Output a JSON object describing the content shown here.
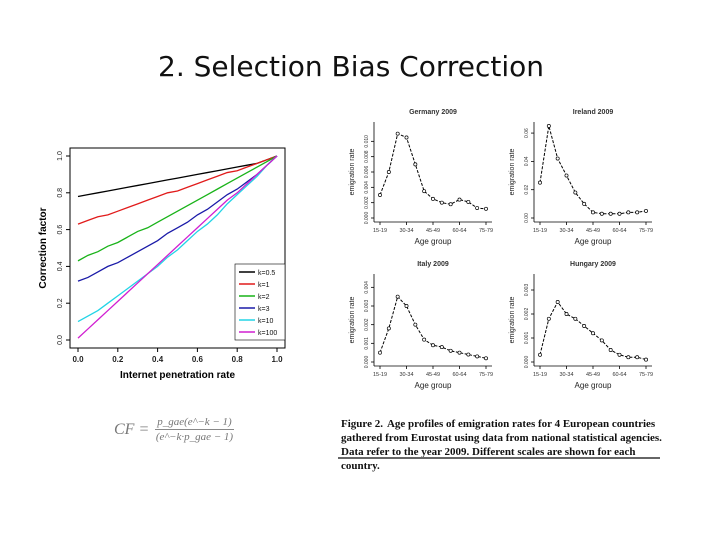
{
  "slide": {
    "title": "2. Selection Bias Correction"
  },
  "formula": {
    "lhs": "CF =",
    "numerator": "p_gae(e^−k − 1)",
    "denominator": "(e^−k·p_gae − 1)"
  },
  "caption": {
    "label": "Figure 2.",
    "text": "Age profiles of emigration rates for 4 European countries gathered from Eurostat using data from national statistical agencies. Data refer to the year 2009. Different scales are shown for each country."
  },
  "chart_data": [
    {
      "id": "correction",
      "type": "line",
      "xlabel": "Internet penetration rate",
      "ylabel": "Correction factor",
      "xlim": [
        0,
        1
      ],
      "ylim": [
        0,
        1
      ],
      "xticks": [
        "0.0",
        "0.2",
        "0.4",
        "0.6",
        "0.8",
        "1.0"
      ],
      "yticks": [
        "0.0",
        "0.2",
        "0.4",
        "0.6",
        "0.8",
        "1.0"
      ],
      "legend_position": "bottom-right",
      "series": [
        {
          "name": "k=0.5",
          "k": 0.5,
          "color": "#000000"
        },
        {
          "name": "k=1",
          "k": 1,
          "color": "#e11b1b"
        },
        {
          "name": "k=2",
          "k": 2,
          "color": "#19b319"
        },
        {
          "name": "k=3",
          "k": 3,
          "color": "#1a1aa8"
        },
        {
          "name": "k=10",
          "k": 10,
          "color": "#22d4e6"
        },
        {
          "name": "k=100",
          "k": 100,
          "color": "#d11fd1"
        }
      ],
      "series_x": [
        0,
        0.05,
        0.1,
        0.15,
        0.2,
        0.25,
        0.3,
        0.35,
        0.4,
        0.45,
        0.5,
        0.55,
        0.6,
        0.65,
        0.7,
        0.75,
        0.8,
        0.85,
        0.9,
        0.95,
        1.0
      ],
      "series_values": [
        [
          0.78,
          0.79,
          0.8,
          0.81,
          0.82,
          0.83,
          0.84,
          0.85,
          0.86,
          0.87,
          0.88,
          0.89,
          0.9,
          0.91,
          0.92,
          0.93,
          0.94,
          0.95,
          0.96,
          0.98,
          1.0
        ],
        [
          0.63,
          0.65,
          0.67,
          0.68,
          0.7,
          0.72,
          0.74,
          0.76,
          0.78,
          0.8,
          0.81,
          0.83,
          0.85,
          0.87,
          0.89,
          0.91,
          0.92,
          0.94,
          0.96,
          0.98,
          1.0
        ],
        [
          0.43,
          0.46,
          0.48,
          0.51,
          0.53,
          0.56,
          0.59,
          0.61,
          0.64,
          0.67,
          0.7,
          0.73,
          0.76,
          0.79,
          0.82,
          0.85,
          0.88,
          0.91,
          0.94,
          0.97,
          1.0
        ],
        [
          0.32,
          0.34,
          0.37,
          0.4,
          0.42,
          0.45,
          0.48,
          0.51,
          0.54,
          0.58,
          0.61,
          0.64,
          0.68,
          0.71,
          0.75,
          0.79,
          0.82,
          0.86,
          0.9,
          0.95,
          1.0
        ],
        [
          0.1,
          0.13,
          0.16,
          0.2,
          0.24,
          0.28,
          0.32,
          0.36,
          0.4,
          0.45,
          0.49,
          0.54,
          0.59,
          0.63,
          0.68,
          0.74,
          0.79,
          0.84,
          0.89,
          0.95,
          1.0
        ],
        [
          0.01,
          0.06,
          0.11,
          0.16,
          0.21,
          0.26,
          0.31,
          0.36,
          0.41,
          0.46,
          0.51,
          0.56,
          0.61,
          0.66,
          0.71,
          0.76,
          0.8,
          0.85,
          0.9,
          0.95,
          1.0
        ]
      ]
    },
    {
      "id": "germany",
      "type": "line",
      "title": "Germany 2009",
      "xlabel": "Age group",
      "ylabel": "emigration rate",
      "categories": [
        "15-19",
        "20-24",
        "25-29",
        "30-34",
        "35-39",
        "40-44",
        "45-49",
        "50-54",
        "55-59",
        "60-64",
        "65-69",
        "70-74",
        "75-79"
      ],
      "xtick_labels": [
        "15-19",
        "30-34",
        "45-49",
        "60-64",
        "75-79"
      ],
      "ylim": [
        0,
        0.012
      ],
      "yticks": [
        "0.000",
        "0.002",
        "0.004",
        "0.006",
        "0.008",
        "0.010"
      ],
      "values": [
        0.003,
        0.006,
        0.011,
        0.0105,
        0.007,
        0.0035,
        0.0025,
        0.002,
        0.0018,
        0.0024,
        0.0021,
        0.0013,
        0.0012
      ]
    },
    {
      "id": "ireland",
      "type": "line",
      "title": "Ireland 2009",
      "xlabel": "Age group",
      "ylabel": "emigration rate",
      "categories": [
        "15-19",
        "20-24",
        "25-29",
        "30-34",
        "35-39",
        "40-44",
        "45-49",
        "50-54",
        "55-59",
        "60-64",
        "65-69",
        "70-74",
        "75-79"
      ],
      "xtick_labels": [
        "15-19",
        "30-34",
        "45-49",
        "60-64",
        "75-79"
      ],
      "ylim": [
        0,
        0.065
      ],
      "yticks": [
        "0.00",
        "0.02",
        "0.04",
        "0.06"
      ],
      "values": [
        0.025,
        0.065,
        0.042,
        0.03,
        0.018,
        0.01,
        0.004,
        0.003,
        0.003,
        0.003,
        0.004,
        0.004,
        0.005
      ]
    },
    {
      "id": "italy",
      "type": "line",
      "title": "Italy 2009",
      "xlabel": "Age group",
      "ylabel": "emigration rate",
      "categories": [
        "15-19",
        "20-24",
        "25-29",
        "30-34",
        "35-39",
        "40-44",
        "45-49",
        "50-54",
        "55-59",
        "60-64",
        "65-69",
        "70-74",
        "75-79"
      ],
      "xtick_labels": [
        "15-19",
        "30-34",
        "45-49",
        "60-64",
        "75-79"
      ],
      "ylim": [
        0,
        0.0045
      ],
      "yticks": [
        "0.000",
        "0.001",
        "0.002",
        "0.003",
        "0.004"
      ],
      "values": [
        0.0005,
        0.0018,
        0.0035,
        0.003,
        0.002,
        0.0012,
        0.0009,
        0.0008,
        0.0006,
        0.0005,
        0.0004,
        0.0003,
        0.0002
      ]
    },
    {
      "id": "hungary",
      "type": "line",
      "title": "Hungary 2009",
      "xlabel": "Age group",
      "ylabel": "emigration rate",
      "categories": [
        "15-19",
        "20-24",
        "25-29",
        "30-34",
        "35-39",
        "40-44",
        "45-49",
        "50-54",
        "55-59",
        "60-64",
        "65-69",
        "70-74",
        "75-79"
      ],
      "xtick_labels": [
        "15-19",
        "30-34",
        "45-49",
        "60-64",
        "75-79"
      ],
      "ylim": [
        0,
        0.0035
      ],
      "yticks": [
        "0.000",
        "0.001",
        "0.002",
        "0.003"
      ],
      "values": [
        0.0003,
        0.0018,
        0.0025,
        0.002,
        0.0018,
        0.0015,
        0.0012,
        0.0009,
        0.0005,
        0.0003,
        0.0002,
        0.0002,
        0.0001
      ]
    }
  ]
}
